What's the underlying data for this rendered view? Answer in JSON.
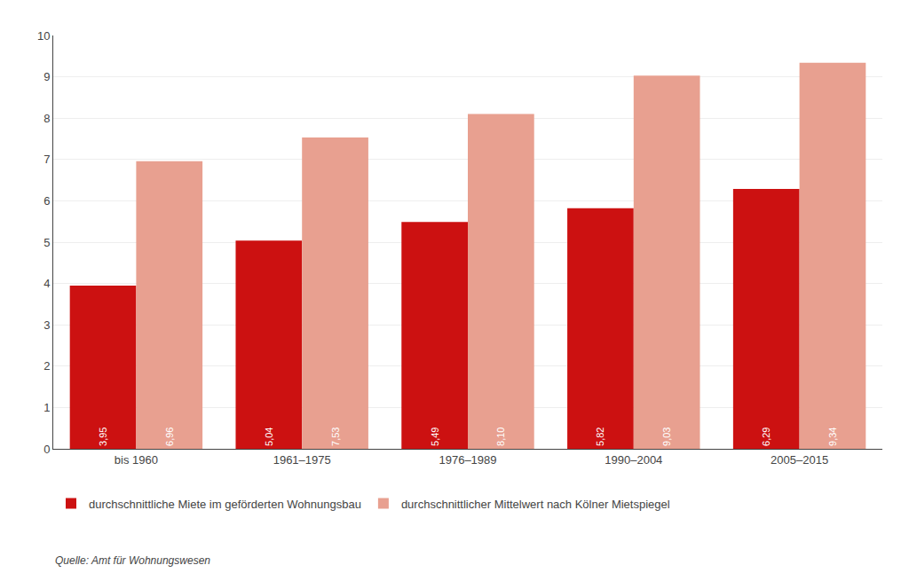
{
  "chart_data": {
    "type": "bar",
    "categories": [
      "bis 1960",
      "1961–1975",
      "1976–1989",
      "1990–2004",
      "2005–2015"
    ],
    "series": [
      {
        "name": "durchschnittliche Miete im geförderten Wohnungsbau",
        "color": "#cc1111",
        "values": [
          3.95,
          5.04,
          5.49,
          5.82,
          6.29
        ],
        "value_labels": [
          "3,95",
          "5,04",
          "5,49",
          "5,82",
          "6,29"
        ]
      },
      {
        "name": "durchschnittlicher Mittelwert nach Kölner Mietspiegel",
        "color": "#e8a090",
        "values": [
          6.96,
          7.53,
          8.1,
          9.03,
          9.34
        ],
        "value_labels": [
          "6,96",
          "7,53",
          "8,10",
          "9,03",
          "9,34"
        ]
      }
    ],
    "ylim": [
      0,
      10
    ],
    "yticks": [
      0,
      1,
      2,
      3,
      4,
      5,
      6,
      7,
      8,
      9,
      10
    ],
    "grid": true,
    "legend": "bottom",
    "data_labels": true,
    "annotations": [
      "Quelle: Amt für Wohnungswesen"
    ]
  }
}
